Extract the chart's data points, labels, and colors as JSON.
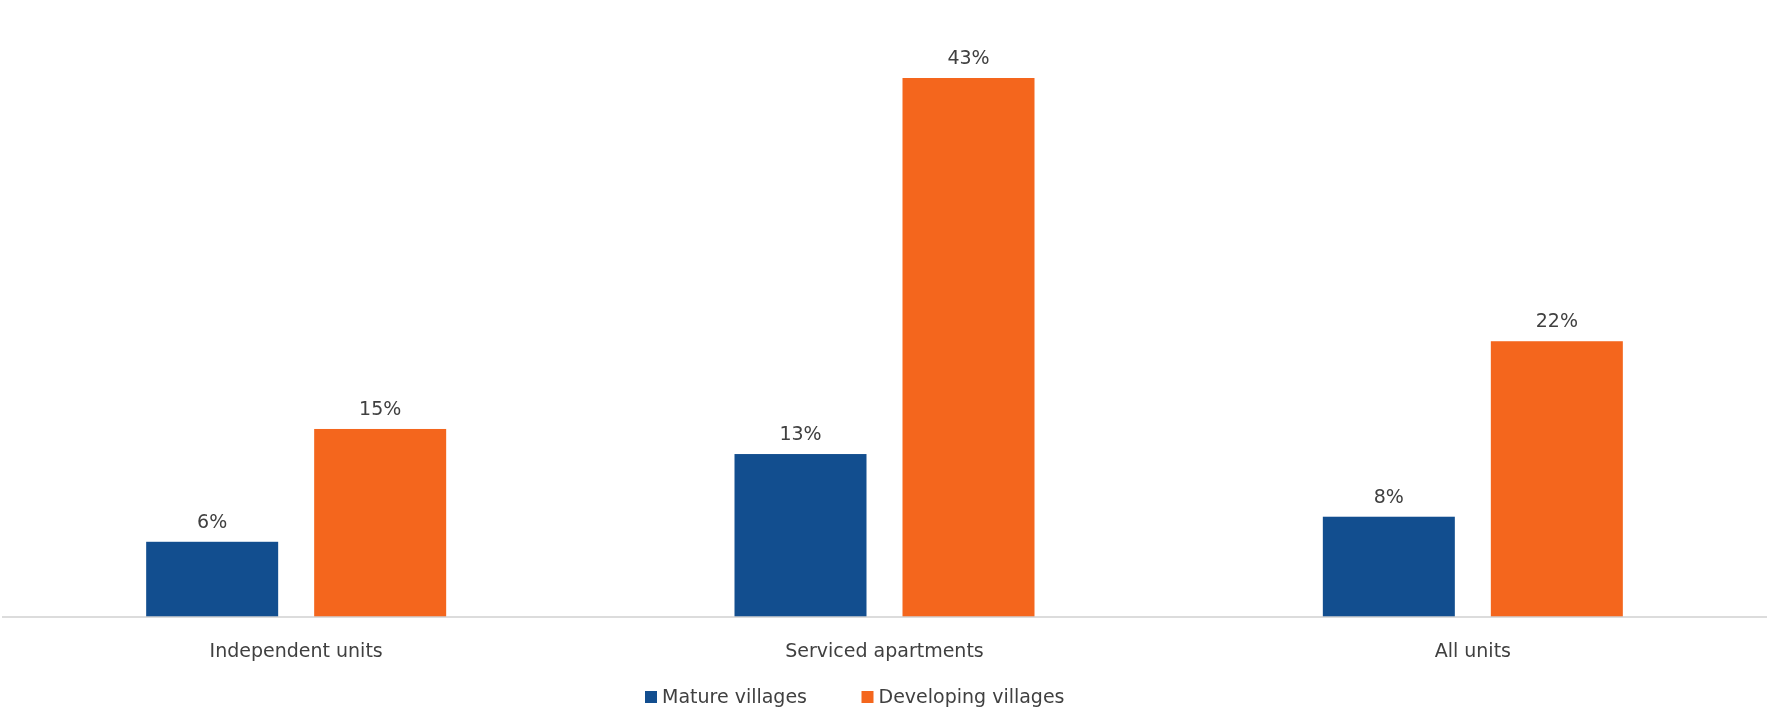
{
  "chart_data": {
    "type": "bar",
    "categories": [
      "Independent units",
      "Serviced apartments",
      "All units"
    ],
    "series": [
      {
        "name": "Mature villages",
        "color": "#124e8f",
        "values": [
          6,
          13,
          8
        ],
        "value_labels": [
          "6%",
          "13%",
          "8%"
        ]
      },
      {
        "name": "Developing villages",
        "color": "#f4661d",
        "values": [
          15,
          43,
          22
        ],
        "value_labels": [
          "15%",
          "43%",
          "22%"
        ]
      }
    ],
    "legend": "bottom"
  }
}
